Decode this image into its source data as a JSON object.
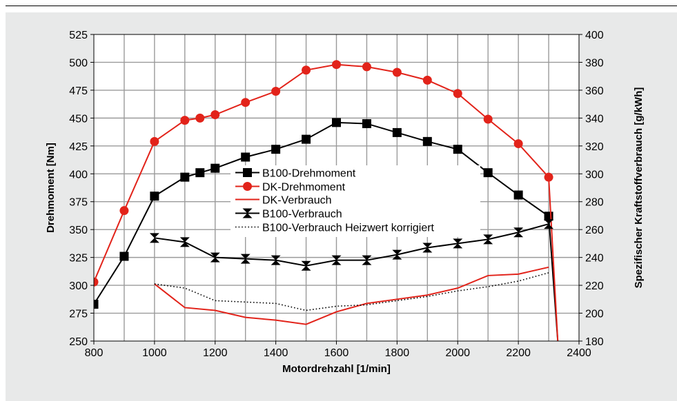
{
  "colors": {
    "panel_bg": "#e8e9e9",
    "plot_bg": "#ffffff",
    "grid": "#9a9a9a",
    "black_series": "#000000",
    "red_series": "#e2231a",
    "dotted_series": "#000000"
  },
  "chart_data": {
    "type": "line",
    "xlabel": "Motordrehzahl [1/min]",
    "ylabel": "Drehmoment [Nm]",
    "y2label": "Spezifischer Kraftstoffverbrauch [g/kWh]",
    "xlim": [
      800,
      2400
    ],
    "ylim": [
      250,
      525
    ],
    "y2lim": [
      180,
      400
    ],
    "x_ticks": [
      800,
      1000,
      1200,
      1400,
      1600,
      1800,
      2000,
      2200,
      2400
    ],
    "y_ticks": [
      250,
      275,
      300,
      325,
      350,
      375,
      400,
      425,
      450,
      475,
      500,
      525
    ],
    "y2_ticks": [
      180,
      200,
      220,
      240,
      260,
      280,
      300,
      320,
      340,
      360,
      380,
      400
    ],
    "grid": true,
    "legend_position": "center",
    "series": [
      {
        "name": "B100-Drehmoment",
        "axis": "left",
        "color": "#000000",
        "marker": "square",
        "line": "solid",
        "x": [
          800,
          900,
          1000,
          1100,
          1150,
          1200,
          1300,
          1400,
          1500,
          1600,
          1700,
          1800,
          1900,
          2000,
          2100,
          2200,
          2300,
          2330
        ],
        "y": [
          283,
          326,
          380,
          397,
          401,
          405,
          415,
          422,
          431,
          446,
          445,
          437,
          429,
          422,
          401,
          381,
          362,
          250
        ]
      },
      {
        "name": "DK-Drehmoment",
        "axis": "left",
        "color": "#e2231a",
        "marker": "circle",
        "line": "solid",
        "x": [
          800,
          900,
          1000,
          1100,
          1150,
          1200,
          1300,
          1400,
          1500,
          1600,
          1700,
          1800,
          1900,
          2000,
          2100,
          2200,
          2300,
          2330
        ],
        "y": [
          303,
          367,
          429,
          448,
          450,
          453,
          464,
          474,
          493,
          498,
          496,
          491,
          484,
          472,
          449,
          427,
          397,
          250
        ]
      },
      {
        "name": "DK-Verbrauch",
        "axis": "right",
        "color": "#e2231a",
        "marker": "none",
        "line": "solid",
        "x": [
          1000,
          1100,
          1200,
          1300,
          1400,
          1500,
          1600,
          1700,
          1800,
          1900,
          2000,
          2100,
          2200,
          2300
        ],
        "y": [
          221,
          204,
          202,
          197,
          195,
          192,
          201,
          207,
          210,
          213,
          218,
          227,
          228,
          233
        ]
      },
      {
        "name": "B100-Verbrauch",
        "axis": "right",
        "color": "#000000",
        "marker": "hourglass",
        "line": "solid",
        "x": [
          1000,
          1100,
          1200,
          1300,
          1400,
          1500,
          1600,
          1700,
          1800,
          1900,
          2000,
          2100,
          2200,
          2300
        ],
        "y": [
          254,
          251,
          240,
          239,
          238,
          234,
          238,
          238,
          242,
          247,
          250,
          253,
          258,
          264
        ]
      },
      {
        "name": "B100-Verbrauch Heizwert korrigiert",
        "axis": "right",
        "color": "#000000",
        "marker": "none",
        "line": "dotted",
        "x": [
          1000,
          1100,
          1200,
          1300,
          1400,
          1500,
          1600,
          1700,
          1800,
          1900,
          2000,
          2100,
          2200,
          2300
        ],
        "y": [
          221,
          218,
          209,
          208,
          207,
          202,
          205,
          206,
          209,
          212,
          216,
          219,
          223,
          229
        ]
      }
    ]
  }
}
